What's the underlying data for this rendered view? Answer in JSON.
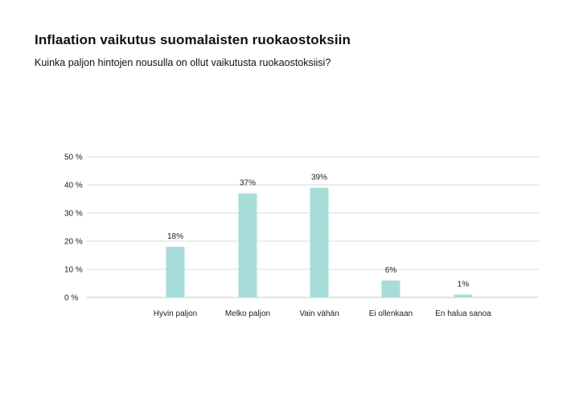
{
  "header": {
    "title": "Inflaation vaikutus suomalaisten ruokaostoksiin",
    "subtitle": "Kuinka paljon hintojen nousulla on ollut vaikutusta ruokaostoksiisi?"
  },
  "chart_data": {
    "type": "bar",
    "title": "Inflaation vaikutus suomalaisten ruokaostoksiin",
    "subtitle": "Kuinka paljon hintojen nousulla on ollut vaikutusta ruokaostoksiisi?",
    "categories": [
      "Hyvin paljon",
      "Melko paljon",
      "Vain vähän",
      "Ei ollenkaan",
      "En halua sanoa"
    ],
    "values": [
      18,
      37,
      39,
      6,
      1
    ],
    "value_labels": [
      "18%",
      "37%",
      "39%",
      "6%",
      "1%"
    ],
    "y_ticks": [
      "0 %",
      "10 %",
      "20 %",
      "30 %",
      "40 %",
      "50 %"
    ],
    "ylim": [
      0,
      50
    ],
    "xlabel": "",
    "ylabel": "",
    "grid": true,
    "legend": "none",
    "bar_color": "#a8dcd9"
  }
}
